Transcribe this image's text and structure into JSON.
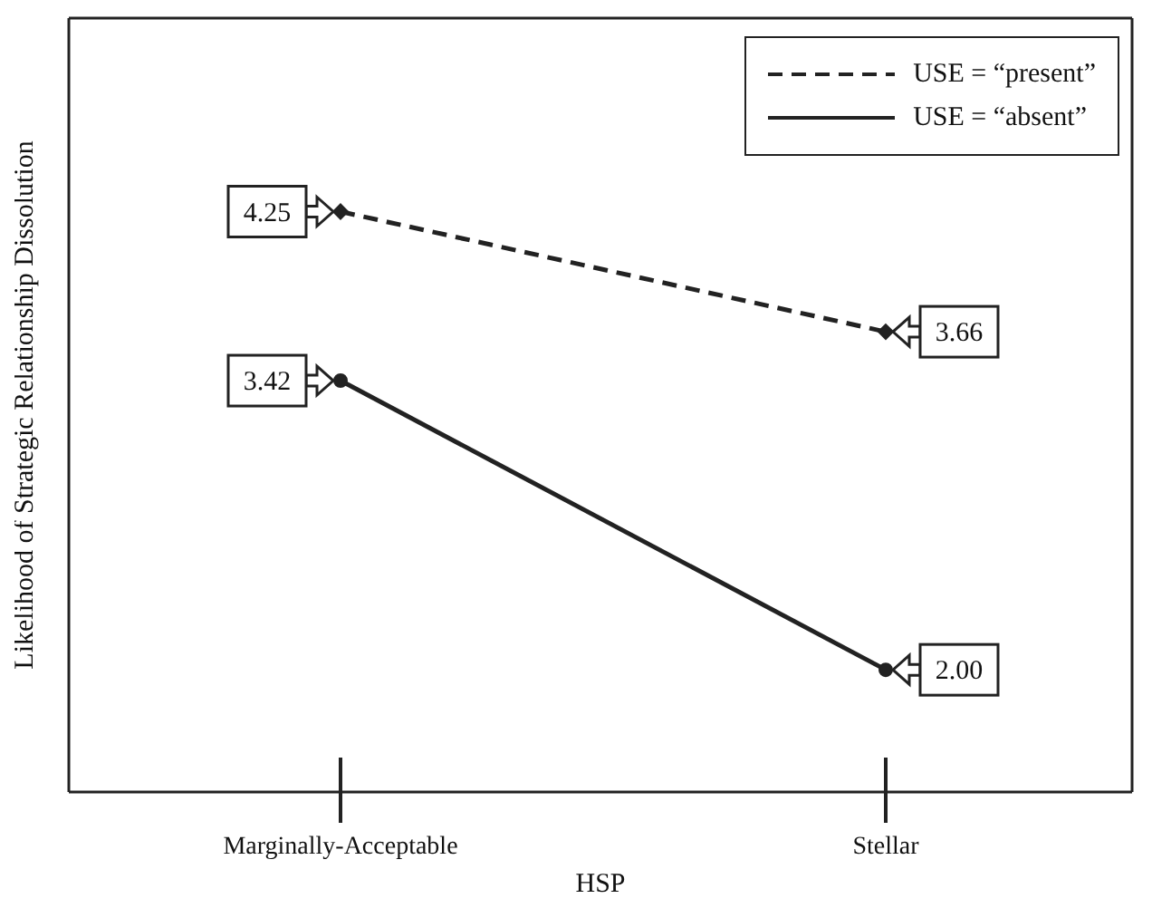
{
  "chart_data": {
    "type": "line",
    "xlabel": "HSP",
    "ylabel": "Likelihood of Strategic Relationship Dissolution",
    "categories": [
      "Marginally-Acceptable",
      "Stellar"
    ],
    "series": [
      {
        "name": "USE = “present”",
        "color": "#222222",
        "values": [
          4.25,
          3.66
        ],
        "value_labels": [
          "4.25",
          "3.66"
        ],
        "line_style": "dashed",
        "marker": "diamond"
      },
      {
        "name": "USE = “absent”",
        "color": "#222222",
        "values": [
          3.42,
          2.0
        ],
        "value_labels": [
          "3.42",
          "2.00"
        ],
        "line_style": "solid",
        "marker": "circle"
      }
    ],
    "ylim": [
      1.4,
      5.2
    ],
    "tick_labels": "x",
    "grid": false,
    "legend": "top right"
  }
}
